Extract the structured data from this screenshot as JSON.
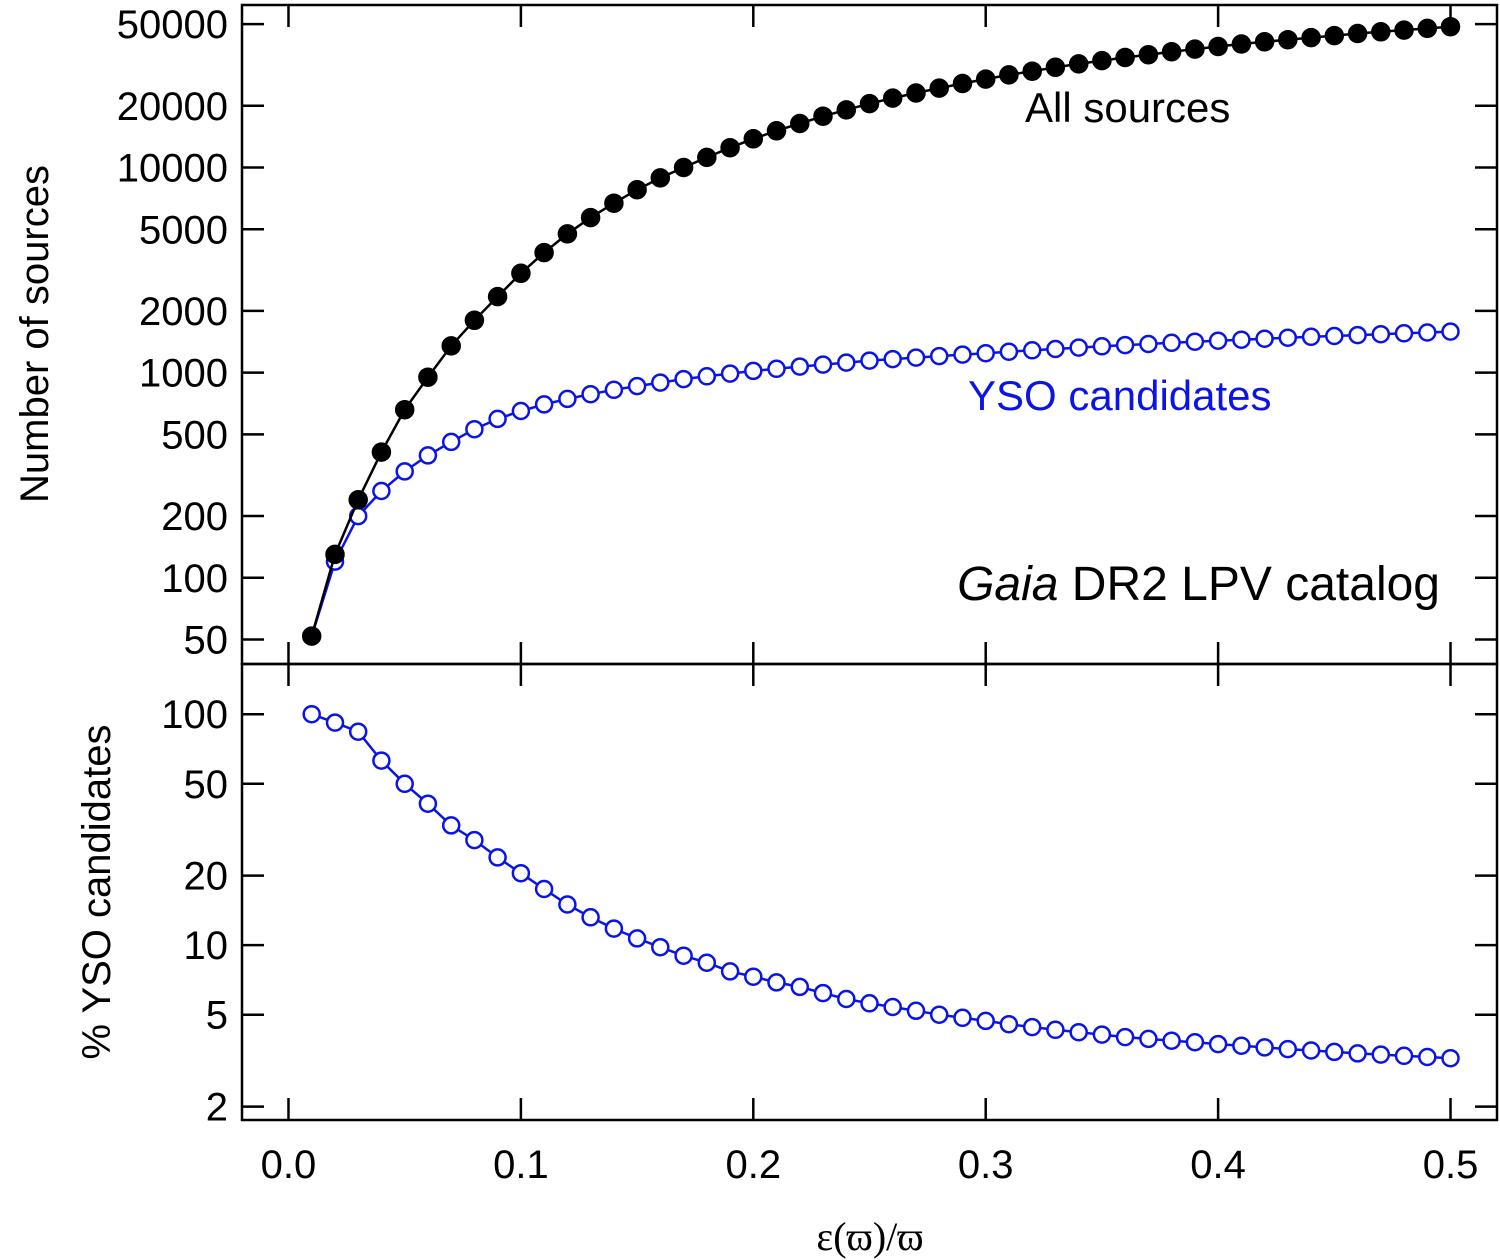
{
  "chart_data": [
    {
      "type": "line",
      "panel": "top",
      "ylabel": "Number of sources",
      "yscale": "log",
      "ylim": [
        38,
        62000
      ],
      "xlim": [
        -0.02,
        0.52
      ],
      "yticks": [
        50,
        100,
        200,
        500,
        1000,
        2000,
        5000,
        10000,
        20000,
        50000
      ],
      "ytick_labels": [
        "50",
        "100",
        "200",
        "500",
        "1000",
        "2000",
        "5000",
        "10000",
        "20000",
        "50000"
      ],
      "annotation_title_italic": "Gaia",
      "annotation_title_rest": " DR2 LPV catalog",
      "x": [
        0.01,
        0.02,
        0.03,
        0.04,
        0.05,
        0.06,
        0.07,
        0.08,
        0.09,
        0.1,
        0.11,
        0.12,
        0.13,
        0.14,
        0.15,
        0.16,
        0.17,
        0.18,
        0.19,
        0.2,
        0.21,
        0.22,
        0.23,
        0.24,
        0.25,
        0.26,
        0.27,
        0.28,
        0.29,
        0.3,
        0.31,
        0.32,
        0.33,
        0.34,
        0.35,
        0.36,
        0.37,
        0.38,
        0.39,
        0.4,
        0.41,
        0.42,
        0.43,
        0.44,
        0.45,
        0.46,
        0.47,
        0.48,
        0.49,
        0.5
      ],
      "series": [
        {
          "name": "All sources",
          "color": "#000000",
          "marker": "filled-circle",
          "values": [
            52,
            130,
            240,
            410,
            660,
            950,
            1350,
            1800,
            2350,
            3050,
            3850,
            4750,
            5700,
            6700,
            7800,
            8900,
            10000,
            11200,
            12500,
            13800,
            15100,
            16400,
            17800,
            19100,
            20500,
            21800,
            23100,
            24400,
            25700,
            27000,
            28300,
            29500,
            30800,
            32000,
            33200,
            34400,
            35500,
            36700,
            37800,
            38900,
            40000,
            41000,
            42000,
            43000,
            44000,
            45000,
            45900,
            46800,
            47700,
            48600
          ]
        },
        {
          "name": "YSO candidates",
          "color": "#0a14e6",
          "marker": "open-circle",
          "values": [
            52,
            120,
            200,
            265,
            330,
            395,
            460,
            530,
            595,
            650,
            700,
            745,
            785,
            825,
            860,
            895,
            930,
            960,
            990,
            1020,
            1045,
            1070,
            1095,
            1120,
            1145,
            1165,
            1185,
            1205,
            1225,
            1245,
            1265,
            1285,
            1305,
            1325,
            1345,
            1362,
            1380,
            1398,
            1415,
            1432,
            1448,
            1464,
            1480,
            1495,
            1510,
            1525,
            1540,
            1555,
            1570,
            1585
          ]
        }
      ]
    },
    {
      "type": "line",
      "panel": "bottom",
      "ylabel": "% YSO candidates",
      "xlabel": "ε(ϖ)/ϖ",
      "yscale": "log",
      "ylim": [
        1.75,
        165
      ],
      "xlim": [
        -0.02,
        0.52
      ],
      "yticks": [
        2,
        5,
        10,
        20,
        50,
        100
      ],
      "ytick_labels": [
        "2",
        "5",
        "10",
        "20",
        "50",
        "100"
      ],
      "xticks": [
        0.0,
        0.1,
        0.2,
        0.3,
        0.4,
        0.5
      ],
      "xtick_labels": [
        "0.0",
        "0.1",
        "0.2",
        "0.3",
        "0.4",
        "0.5"
      ],
      "x": [
        0.01,
        0.02,
        0.03,
        0.04,
        0.05,
        0.06,
        0.07,
        0.08,
        0.09,
        0.1,
        0.11,
        0.12,
        0.13,
        0.14,
        0.15,
        0.16,
        0.17,
        0.18,
        0.19,
        0.2,
        0.21,
        0.22,
        0.23,
        0.24,
        0.25,
        0.26,
        0.27,
        0.28,
        0.29,
        0.3,
        0.31,
        0.32,
        0.33,
        0.34,
        0.35,
        0.36,
        0.37,
        0.38,
        0.39,
        0.4,
        0.41,
        0.42,
        0.43,
        0.44,
        0.45,
        0.46,
        0.47,
        0.48,
        0.49,
        0.5
      ],
      "series": [
        {
          "color": "#0a14e6",
          "marker": "open-circle",
          "values": [
            100,
            92,
            84,
            63,
            50,
            41,
            33,
            28.5,
            24,
            20.5,
            17.5,
            15,
            13.2,
            11.8,
            10.7,
            9.8,
            9.0,
            8.4,
            7.7,
            7.3,
            6.9,
            6.6,
            6.2,
            5.85,
            5.6,
            5.4,
            5.2,
            5.0,
            4.85,
            4.7,
            4.55,
            4.42,
            4.3,
            4.2,
            4.1,
            4.0,
            3.93,
            3.86,
            3.8,
            3.73,
            3.67,
            3.61,
            3.55,
            3.5,
            3.45,
            3.4,
            3.36,
            3.32,
            3.28,
            3.24
          ]
        }
      ]
    }
  ]
}
